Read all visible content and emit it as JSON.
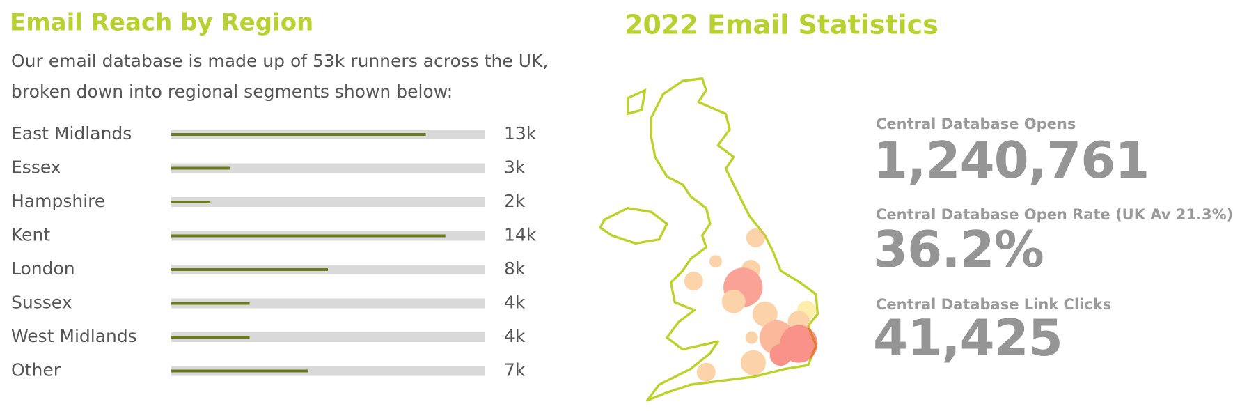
{
  "chart_data": {
    "type": "bar",
    "orientation": "horizontal",
    "title": "Email Reach by Region",
    "subtitle": "Our email database is made up of 53k runners across the UK, broken down into regional segments shown below:",
    "categories": [
      "East Midlands",
      "Essex",
      "Hampshire",
      "Kent",
      "London",
      "Sussex",
      "West Midlands",
      "Other"
    ],
    "values": [
      13000,
      3000,
      2000,
      14000,
      8000,
      4000,
      4000,
      7000
    ],
    "value_labels": [
      "13k",
      "3k",
      "2k",
      "14k",
      "8k",
      "4k",
      "4k",
      "7k"
    ],
    "xlim": [
      0,
      16000
    ],
    "color": "#6b7a1f",
    "track_color": "#d9d9d9"
  },
  "stats": {
    "title": "2022 Email Statistics",
    "items": [
      {
        "label": "Central Database Opens",
        "value": "1,240,761"
      },
      {
        "label": "Central Database Open Rate (UK Av 21.3%)",
        "value": "36.2%"
      },
      {
        "label": "Central Database Link Clicks",
        "value": "41,425"
      }
    ]
  }
}
